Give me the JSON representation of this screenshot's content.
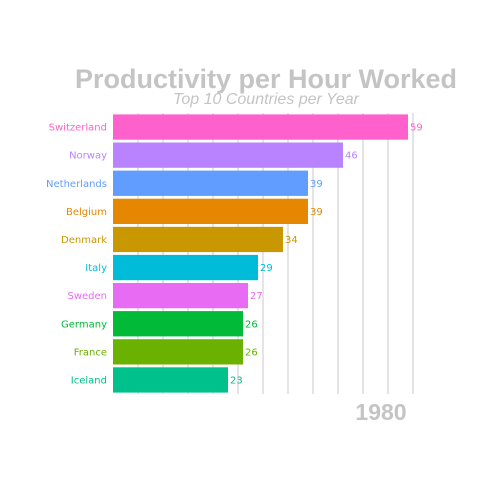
{
  "chart_data": {
    "type": "bar",
    "orientation": "horizontal",
    "title": "Productivity per Hour Worked",
    "subtitle": "Top 10 Countries per Year",
    "year": "1980",
    "xlim": [
      0,
      62
    ],
    "grid_x": [
      5,
      10,
      15,
      20,
      25,
      30,
      35,
      40,
      45,
      50,
      55,
      60
    ],
    "categories": [
      "Switzerland",
      "Norway",
      "Netherlands",
      "Belgium",
      "Denmark",
      "Italy",
      "Sweden",
      "Germany",
      "France",
      "Iceland"
    ],
    "values": [
      59,
      46,
      39,
      39,
      34,
      29,
      27,
      26,
      26,
      23
    ],
    "value_labels": [
      "59",
      "46",
      "39",
      "39",
      "34",
      "29",
      "27",
      "26",
      "26",
      "23"
    ],
    "colors": [
      "#FF61CC",
      "#B983FF",
      "#619CFF",
      "#E58700",
      "#C99800",
      "#00BCD8",
      "#E76BF3",
      "#00BA38",
      "#6BB100",
      "#00C08B"
    ]
  }
}
